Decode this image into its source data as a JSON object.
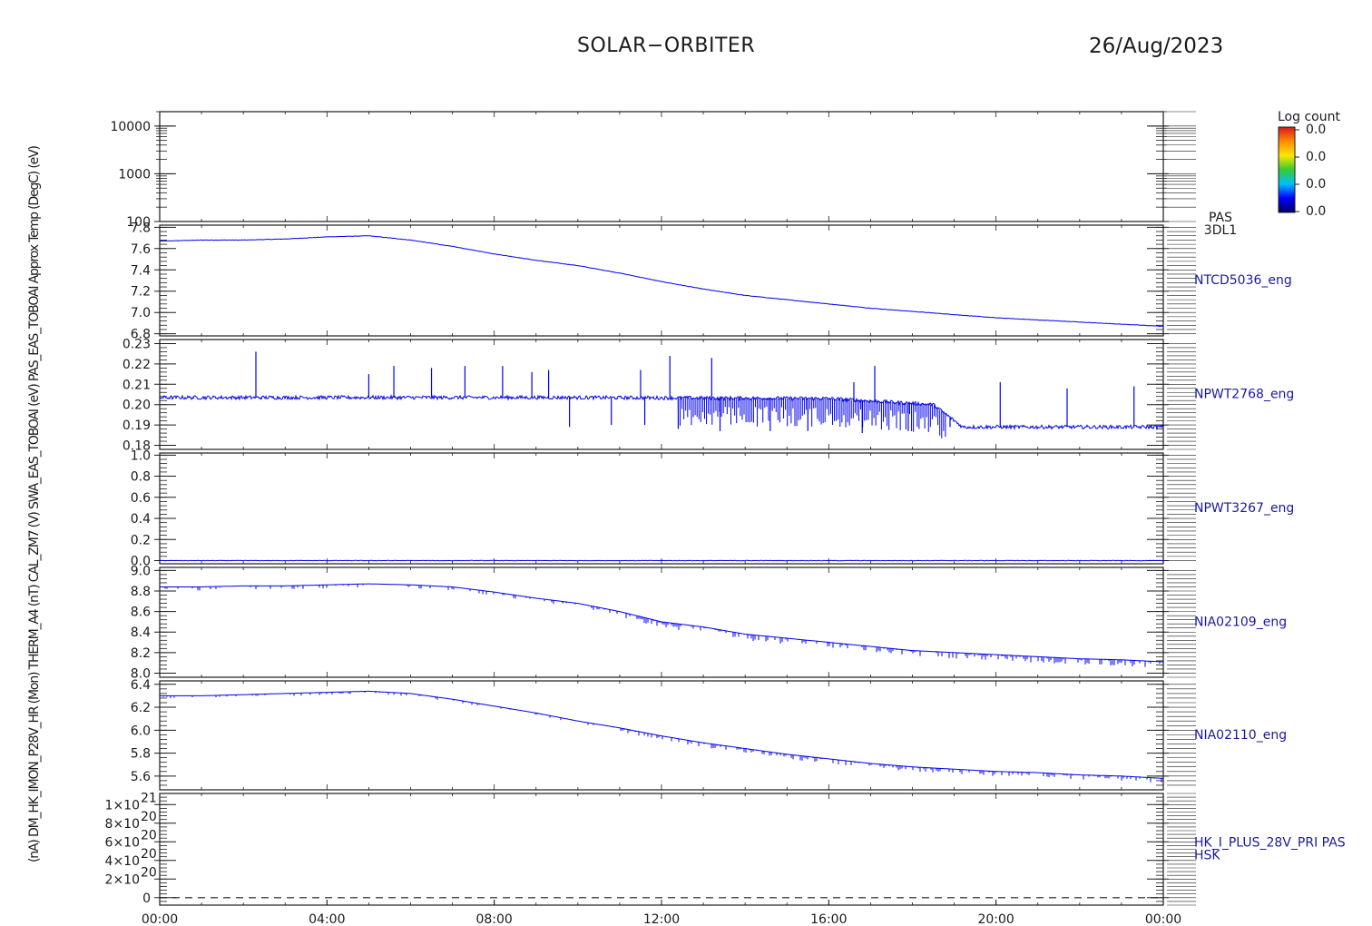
{
  "header": {
    "title": "SOLAR−ORBITER",
    "date": "26/Aug/2023"
  },
  "colorbar": {
    "title": "Log count",
    "tick_labels": [
      "0.0",
      "0.0",
      "0.0",
      "0.0"
    ],
    "colors": [
      "#d7191c",
      "#ff8c00",
      "#ffe600",
      "#33cc33",
      "#00bfff",
      "#0000ff",
      "#000060"
    ]
  },
  "colors": {
    "trace": "#0000ee",
    "axis": "#1a1a1a",
    "label": "#1a1a9a"
  },
  "chart_data": {
    "type": "line",
    "x_axis": {
      "tick_labels": [
        "00:00",
        "04:00",
        "08:00",
        "12:00",
        "16:00",
        "20:00",
        "00:00"
      ],
      "range_hours": [
        0,
        24
      ]
    },
    "ylabels_overlap_text": "(nA) DM_HK_IMON_P28V_HR (Mon) THERM_A4 (nT) CAL_ZM7 (V) SWA_EAS_TOBOAI (eV) PAS_EAS_TOBOAI Approx Temp (DegC) (eV)",
    "panels": [
      {
        "id": "pas",
        "right_label": [
          "PAS",
          "3DL1"
        ],
        "ylabel": "(eV)",
        "log": true,
        "ylim": [
          100,
          20000
        ],
        "ticks": [
          100,
          1000,
          10000
        ],
        "tick_labels": [
          "100",
          "1000",
          "10000"
        ],
        "series": []
      },
      {
        "id": "ntcd5036",
        "right_label": [
          "NTCD5036_eng"
        ],
        "ylabel": "Approx Temp (DegC)",
        "ylim": [
          6.78,
          7.82
        ],
        "ticks": [
          6.8,
          7.0,
          7.2,
          7.4,
          7.6,
          7.8
        ],
        "tick_labels": [
          "6.8",
          "7.0",
          "7.2",
          "7.4",
          "7.6",
          "7.8"
        ],
        "series": [
          {
            "x": [
              0,
              1,
              2,
              3,
              4,
              5,
              6,
              7,
              8,
              9,
              10,
              11,
              12,
              13,
              14,
              15,
              16,
              17,
              18,
              19,
              20,
              21,
              22,
              23,
              24
            ],
            "values": [
              7.67,
              7.68,
              7.68,
              7.69,
              7.71,
              7.72,
              7.68,
              7.62,
              7.55,
              7.49,
              7.44,
              7.37,
              7.29,
              7.22,
              7.16,
              7.12,
              7.08,
              7.04,
              7.01,
              6.98,
              6.95,
              6.93,
              6.91,
              6.89,
              6.87
            ]
          }
        ]
      },
      {
        "id": "npwt2768",
        "right_label": [
          "NPWT2768_eng"
        ],
        "ylabel": "SWA_EAS_TOBOAI",
        "ylim": [
          0.178,
          0.232
        ],
        "ticks": [
          0.18,
          0.19,
          0.2,
          0.21,
          0.22,
          0.23
        ],
        "tick_labels": [
          "0.18",
          "0.19",
          "0.20",
          "0.21",
          "0.22",
          "0.23"
        ],
        "series": [
          {
            "baseline": [
              [
                0,
                0.2035
              ],
              [
                9.8,
                0.2035
              ],
              [
                16,
                0.203
              ],
              [
                18.5,
                0.2
              ],
              [
                19.2,
                0.189
              ],
              [
                24,
                0.189
              ]
            ],
            "spikes_up": [
              [
                2.3,
                0.226
              ],
              [
                5.0,
                0.215
              ],
              [
                5.6,
                0.219
              ],
              [
                6.5,
                0.218
              ],
              [
                7.3,
                0.219
              ],
              [
                8.2,
                0.219
              ],
              [
                8.9,
                0.216
              ],
              [
                9.3,
                0.217
              ],
              [
                11.5,
                0.217
              ],
              [
                12.2,
                0.224
              ],
              [
                13.2,
                0.223
              ],
              [
                17.1,
                0.219
              ],
              [
                16.6,
                0.211
              ],
              [
                20.1,
                0.211
              ],
              [
                21.7,
                0.208
              ],
              [
                23.3,
                0.209
              ]
            ],
            "spikes_down": [
              [
                9.8,
                0.189
              ],
              [
                10.8,
                0.19
              ],
              [
                11.6,
                0.19
              ],
              [
                12.4,
                0.188
              ],
              [
                13.4,
                0.187
              ],
              [
                14.6,
                0.187
              ],
              [
                15.5,
                0.187
              ],
              [
                16.8,
                0.186
              ],
              [
                17.9,
                0.187
              ],
              [
                18.9,
                0.189
              ]
            ]
          }
        ]
      },
      {
        "id": "npwt3267",
        "right_label": [
          "NPWT3267_eng"
        ],
        "ylabel": "CAL_ZM7",
        "ylim": [
          -0.03,
          1.02
        ],
        "ticks": [
          0,
          0.2,
          0.4,
          0.6,
          0.8,
          1.0
        ],
        "tick_labels": [
          "0.0",
          "0.2",
          "0.4",
          "0.6",
          "0.8",
          "1.0"
        ],
        "series": [
          {
            "x": [
              0,
              24
            ],
            "values": [
              0.0,
              0.0
            ]
          }
        ]
      },
      {
        "id": "nia02109",
        "right_label": [
          "NIA02109_eng"
        ],
        "ylabel": "THERM_A4",
        "ylim": [
          7.96,
          9.03
        ],
        "ticks": [
          8.0,
          8.2,
          8.4,
          8.6,
          8.8,
          9.0
        ],
        "tick_labels": [
          "8.0",
          "8.2",
          "8.4",
          "8.6",
          "8.8",
          "9.0"
        ],
        "series": [
          {
            "x": [
              0,
              1,
              2,
              3,
              4,
              5,
              6,
              7,
              8,
              9,
              10,
              11,
              12,
              13,
              14,
              15,
              16,
              17,
              18,
              19,
              20,
              21,
              22,
              23,
              24
            ],
            "values": [
              8.84,
              8.84,
              8.85,
              8.85,
              8.86,
              8.87,
              8.86,
              8.84,
              8.79,
              8.73,
              8.68,
              8.6,
              8.5,
              8.45,
              8.38,
              8.34,
              8.3,
              8.26,
              8.22,
              8.2,
              8.18,
              8.16,
              8.14,
              8.13,
              8.11
            ]
          }
        ]
      },
      {
        "id": "nia02110",
        "right_label": [
          "NIA02110_eng"
        ],
        "ylabel": "(Mon)",
        "ylim": [
          5.48,
          6.43
        ],
        "ticks": [
          5.6,
          5.8,
          6.0,
          6.2,
          6.4
        ],
        "tick_labels": [
          "5.6",
          "5.8",
          "6.0",
          "6.2",
          "6.4"
        ],
        "series": [
          {
            "x": [
              0,
              1,
              2,
              3,
              4,
              5,
              6,
              7,
              8,
              9,
              10,
              11,
              12,
              13,
              14,
              15,
              16,
              17,
              18,
              19,
              20,
              21,
              22,
              23,
              24
            ],
            "values": [
              6.3,
              6.3,
              6.31,
              6.32,
              6.33,
              6.34,
              6.32,
              6.27,
              6.21,
              6.15,
              6.08,
              6.02,
              5.95,
              5.89,
              5.84,
              5.79,
              5.75,
              5.71,
              5.68,
              5.66,
              5.64,
              5.63,
              5.61,
              5.6,
              5.58
            ]
          }
        ]
      },
      {
        "id": "hk",
        "right_label": [
          "HK_I_PLUS_28V_PRI PAS",
          "HSK"
        ],
        "ylabel": "DM_HK_IMON_P28V_HR (nA)",
        "ylim": [
          -8e+19,
          1.12e+21
        ],
        "ticks": [
          0,
          2e+20,
          4e+20,
          6e+20,
          8e+20,
          1e+21
        ],
        "tick_labels": [
          [
            "0",
            ""
          ],
          [
            "2×10",
            "20"
          ],
          [
            "4×10",
            "20"
          ],
          [
            "6×10",
            "20"
          ],
          [
            "8×10",
            "20"
          ],
          [
            "1×10",
            "21"
          ]
        ],
        "series": [
          {
            "x": [
              0,
              24
            ],
            "values": [
              0,
              0
            ],
            "dashed": true
          }
        ]
      }
    ]
  }
}
